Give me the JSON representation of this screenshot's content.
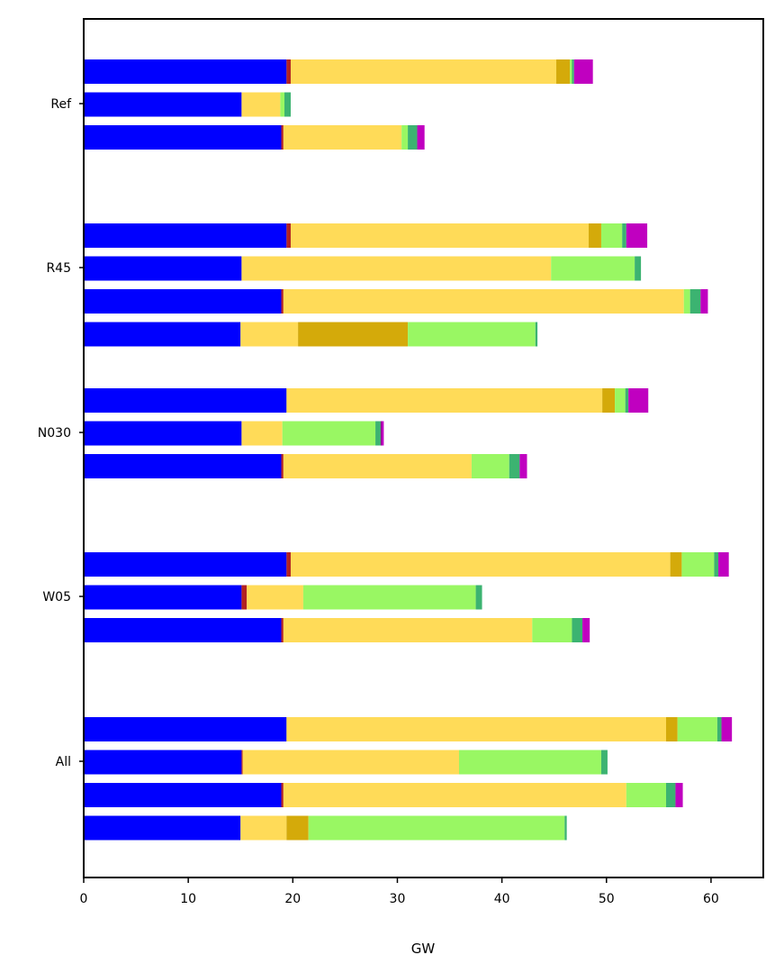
{
  "chart_data": {
    "type": "bar",
    "orientation": "horizontal",
    "stacked": true,
    "title": "",
    "xlabel": "GW",
    "ylabel": "",
    "xlim": [
      0,
      65
    ],
    "xticks": [
      0,
      10,
      20,
      30,
      40,
      50,
      60
    ],
    "grid": false,
    "legend": "none",
    "component_colors": [
      "#0000ff",
      "#b22222",
      "#ffdb58",
      "#d4aa0a",
      "#99f763",
      "#3cb371",
      "#8b008b",
      "#c000c0"
    ],
    "groups": [
      {
        "label": "Ref",
        "bars": [
          [
            19.4,
            0.4,
            25.4,
            1.3,
            0.2,
            0.2,
            0.0,
            1.8
          ],
          [
            15.1,
            0.0,
            3.7,
            0.0,
            0.4,
            0.6,
            0.0,
            0.0
          ],
          [
            18.9,
            0.2,
            11.3,
            0.0,
            0.6,
            0.9,
            0.0,
            0.7
          ]
        ]
      },
      {
        "label": "R45",
        "bars": [
          [
            19.4,
            0.4,
            28.5,
            1.2,
            2.0,
            0.4,
            0.0,
            2.0
          ],
          [
            15.1,
            0.0,
            29.6,
            0.0,
            8.0,
            0.6,
            0.0,
            0.0
          ],
          [
            18.9,
            0.2,
            38.3,
            0.0,
            0.6,
            1.0,
            0.0,
            0.7
          ],
          [
            15.0,
            0.0,
            5.5,
            10.5,
            12.2,
            0.2,
            0.0,
            0.0
          ]
        ]
      },
      {
        "label": "N030",
        "bars": [
          [
            19.4,
            0.0,
            30.2,
            1.2,
            1.0,
            0.3,
            0.0,
            1.9
          ],
          [
            15.1,
            0.0,
            3.9,
            0.0,
            8.9,
            0.5,
            0.1,
            0.2
          ],
          [
            18.9,
            0.2,
            18.0,
            0.0,
            3.6,
            1.0,
            0.0,
            0.7
          ]
        ]
      },
      {
        "label": "W05",
        "bars": [
          [
            19.4,
            0.4,
            36.3,
            1.1,
            3.1,
            0.4,
            0.0,
            1.0
          ],
          [
            15.1,
            0.5,
            5.4,
            0.0,
            16.5,
            0.6,
            0.0,
            0.0
          ],
          [
            18.9,
            0.2,
            23.8,
            0.0,
            3.8,
            1.0,
            0.0,
            0.7
          ]
        ]
      },
      {
        "label": "All",
        "bars": [
          [
            19.4,
            0.0,
            36.3,
            1.1,
            3.8,
            0.4,
            0.0,
            1.0
          ],
          [
            15.1,
            0.1,
            20.7,
            0.0,
            13.6,
            0.6,
            0.0,
            0.0
          ],
          [
            18.9,
            0.2,
            32.8,
            0.0,
            3.8,
            0.9,
            0.0,
            0.7
          ],
          [
            15.0,
            0.0,
            4.4,
            2.1,
            24.5,
            0.2,
            0.0,
            0.0
          ]
        ]
      }
    ]
  }
}
